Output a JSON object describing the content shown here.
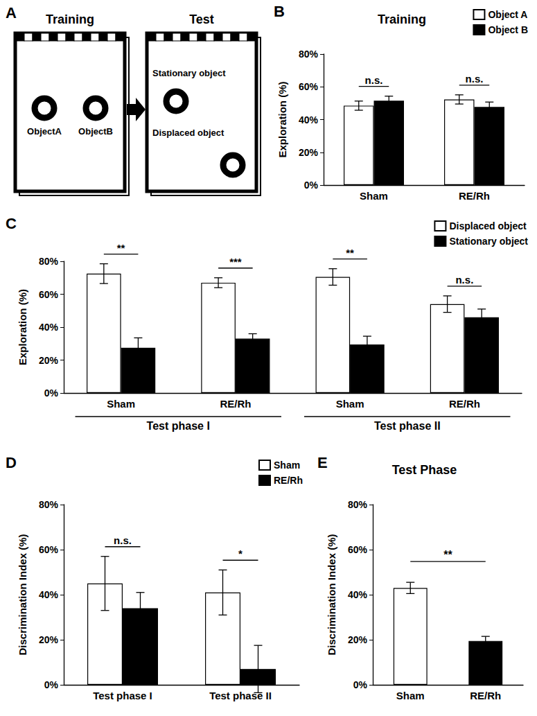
{
  "diagram": {
    "panel": "A",
    "stages": [
      {
        "title": "Training",
        "objects": [
          "ObjectA",
          "ObjectB"
        ]
      },
      {
        "title": "Test",
        "objects": [
          "Stationary object",
          "Displaced object"
        ]
      }
    ]
  },
  "chart_data": [
    {
      "panel": "B",
      "type": "bar",
      "title": "Training",
      "ylabel": "Exploration (%)",
      "categories": [
        "Sham",
        "RE/Rh"
      ],
      "series": [
        {
          "name": "Object A",
          "color": "#ffffff",
          "values": [
            48.5,
            52.3
          ],
          "errors": [
            2.8,
            2.8
          ]
        },
        {
          "name": "Object B",
          "color": "#000000",
          "values": [
            51.5,
            47.7
          ],
          "errors": [
            2.8,
            3.0
          ]
        }
      ],
      "ylim": [
        0,
        80
      ],
      "yticks": [
        {
          "value": 0,
          "label": "0%"
        },
        {
          "value": 20,
          "label": "20%"
        },
        {
          "value": 40,
          "label": "40%"
        },
        {
          "value": 60,
          "label": "60%"
        },
        {
          "value": 80,
          "label": "80%"
        }
      ],
      "grid": false,
      "legend": "top-right",
      "annotations": [
        "n.s.",
        "n.s."
      ]
    },
    {
      "panel": "C",
      "type": "bar",
      "ylabel": "Exploration (%)",
      "categories": [
        "Sham",
        "RE/Rh",
        "Sham",
        "RE/Rh"
      ],
      "groups": [
        "Test phase I",
        "Test phase II"
      ],
      "series": [
        {
          "name": "Displaced object",
          "color": "#ffffff",
          "values": [
            72.5,
            67.0,
            70.5,
            54.0
          ],
          "errors": [
            6.0,
            3.0,
            5.0,
            5.0
          ]
        },
        {
          "name": "Stationary object",
          "color": "#000000",
          "values": [
            27.5,
            33.0,
            29.5,
            46.0
          ],
          "errors": [
            6.0,
            3.0,
            5.0,
            5.0
          ]
        }
      ],
      "ylim": [
        0,
        80
      ],
      "yticks": [
        {
          "value": 0,
          "label": "0%"
        },
        {
          "value": 20,
          "label": "20%"
        },
        {
          "value": 40,
          "label": "40%"
        },
        {
          "value": 60,
          "label": "60%"
        },
        {
          "value": 80,
          "label": "80%"
        }
      ],
      "grid": false,
      "legend": "top-right",
      "annotations": [
        "**",
        "***",
        "**",
        "n.s."
      ]
    },
    {
      "panel": "D",
      "type": "bar",
      "ylabel": "Discrimination Index (%)",
      "categories": [
        "Test phase I",
        "Test phase II"
      ],
      "series": [
        {
          "name": "Sham",
          "color": "#ffffff",
          "values": [
            45.0,
            41.0
          ],
          "errors": [
            12.0,
            10.0
          ]
        },
        {
          "name": "RE/Rh",
          "color": "#000000",
          "values": [
            34.0,
            7.0
          ],
          "errors": [
            7.0,
            10.5
          ]
        }
      ],
      "ylim": [
        0,
        80
      ],
      "yticks": [
        {
          "value": 0,
          "label": "0%"
        },
        {
          "value": 20,
          "label": "20%"
        },
        {
          "value": 40,
          "label": "40%"
        },
        {
          "value": 60,
          "label": "60%"
        },
        {
          "value": 80,
          "label": "80%"
        }
      ],
      "grid": false,
      "legend": "top-right",
      "annotations": [
        "n.s.",
        "*"
      ]
    },
    {
      "panel": "E",
      "type": "bar",
      "title": "Test Phase",
      "ylabel": "Discrimination Index (%)",
      "categories": [
        "Sham",
        "RE/Rh"
      ],
      "values": [
        43.0,
        19.5
      ],
      "errors": [
        2.5,
        2.0
      ],
      "colors": [
        "#ffffff",
        "#000000"
      ],
      "ylim": [
        0,
        80
      ],
      "yticks": [
        {
          "value": 0,
          "label": "0%"
        },
        {
          "value": 20,
          "label": "20%"
        },
        {
          "value": 40,
          "label": "40%"
        },
        {
          "value": 60,
          "label": "60%"
        },
        {
          "value": 80,
          "label": "80%"
        }
      ],
      "grid": false,
      "annotation": "**"
    }
  ]
}
